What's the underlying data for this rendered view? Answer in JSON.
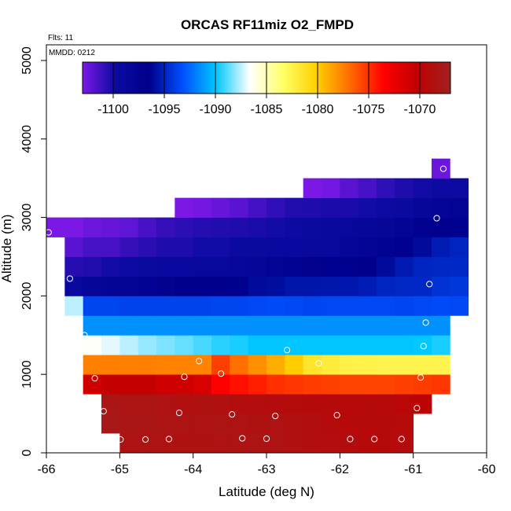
{
  "chart_data": {
    "type": "heatmap",
    "title": "ORCAS RF11miz O2_FMPD",
    "annotations": {
      "flights": "Flts: 11",
      "date": "MMDD: 0212"
    },
    "xlabel": "Latitude (deg N)",
    "ylabel": "Altitude (m)",
    "xlim": [
      -66,
      -60
    ],
    "ylim": [
      0,
      5200
    ],
    "xticks": [
      -66,
      -65,
      -64,
      -63,
      -62,
      -61,
      -60
    ],
    "yticks": [
      0,
      1000,
      2000,
      3000,
      4000,
      5000
    ],
    "colorbar": {
      "range": [
        -1103,
        -1067
      ],
      "ticks": [
        -1100,
        -1095,
        -1090,
        -1085,
        -1080,
        -1075,
        -1070
      ],
      "stops": [
        "#7b18e6",
        "#0a0aa0",
        "#00008c",
        "#0050ff",
        "#00c8ff",
        "#ffffff",
        "#ffff66",
        "#ffd000",
        "#ff6a00",
        "#ff0000",
        "#c00000",
        "#a02020"
      ]
    },
    "cell_width_deg": 0.25,
    "cell_height_m": 250,
    "rows": [
      {
        "y0": 0,
        "x0": -65.0,
        "values": [
          -1068.4,
          -1068.3,
          -1068.4,
          -1068.5,
          -1068.5,
          -1068.4,
          -1068.3,
          -1068.2,
          -1068.4,
          -1068.6,
          -1068.8,
          -1068.9,
          -1069.0,
          -1069.2,
          -1069.2,
          -1069.0
        ]
      },
      {
        "y0": 250,
        "x0": -65.25,
        "values": [
          -1067.8,
          -1068.0,
          -1068.0,
          -1068.2,
          -1068.3,
          -1068.4,
          -1068.2,
          -1068.4,
          -1068.5,
          -1068.4,
          -1068.6,
          -1068.8,
          -1069.0,
          -1069.2,
          -1069.3,
          -1069.2,
          -1069.1
        ]
      },
      {
        "y0": 500,
        "x0": -65.25,
        "values": [
          -1068.0,
          -1068.2,
          -1068.2,
          -1068.4,
          -1068.6,
          -1068.5,
          -1068.6,
          -1068.8,
          -1068.9,
          -1069.0,
          -1069.1,
          -1069.2,
          -1069.3,
          -1069.4,
          -1069.3,
          -1069.4,
          -1069.6,
          -1069.8
        ]
      },
      {
        "y0": 750,
        "x0": -65.5,
        "values": [
          -1071.0,
          -1070.5,
          -1070.5,
          -1070.5,
          -1071.0,
          -1071.0,
          -1071.5,
          -1073.5,
          -1074.0,
          -1074.5,
          -1075.0,
          -1075.2,
          -1075.4,
          -1075.5,
          -1075.6,
          -1075.6,
          -1075.6,
          -1075.5,
          -1075.4,
          -1075.2
        ]
      },
      {
        "y0": 1000,
        "x0": -65.5,
        "values": [
          -1077.5,
          -1077.5,
          -1077.5,
          -1077.5,
          -1077.6,
          -1077.6,
          -1077.6,
          -1075.5,
          -1077.0,
          -1078.0,
          -1079.0,
          -1080.0,
          -1081.5,
          -1082.0,
          -1082.4,
          -1082.5,
          -1082.6,
          -1082.6,
          -1082.6,
          -1082.6
        ]
      },
      {
        "y0": 1250,
        "x0": -65.5,
        "values": [
          -1086.5,
          -1087.0,
          -1087.5,
          -1088.0,
          -1088.3,
          -1088.6,
          -1089.0,
          -1089.4,
          -1089.6,
          -1090.0,
          -1090.0,
          -1090.0,
          -1090.0,
          -1090.0,
          -1090.0,
          -1090.0,
          -1090.0,
          -1090.0,
          -1089.9,
          -1089.6
        ]
      },
      {
        "y0": 1500,
        "x0": -65.5,
        "values": [
          -1091.4,
          -1091.4,
          -1091.4,
          -1091.4,
          -1091.4,
          -1091.4,
          -1091.4,
          -1091.4,
          -1091.4,
          -1091.4,
          -1091.4,
          -1091.4,
          -1091.4,
          -1091.4,
          -1091.4,
          -1091.4,
          -1091.4,
          -1091.4,
          -1091.4,
          -1091.4
        ]
      },
      {
        "y0": 1750,
        "x0": -65.75,
        "values": [
          -1087.5,
          -1093.6,
          -1093.6,
          -1093.7,
          -1093.7,
          -1093.7,
          -1093.7,
          -1093.7,
          -1093.6,
          -1093.6,
          -1093.5,
          -1093.4,
          -1093.5,
          -1093.6,
          -1093.5,
          -1093.5,
          -1093.5,
          -1093.5,
          -1093.6,
          -1093.5,
          -1093.4,
          -1093.5
        ]
      },
      {
        "y0": 2000,
        "x0": -65.75,
        "values": [
          -1099.0,
          -1098.5,
          -1098.0,
          -1097.8,
          -1097.6,
          -1097.0,
          -1096.5,
          -1096.6,
          -1096.6,
          -1096.4,
          -1096.0,
          -1095.9,
          -1095.6,
          -1095.6,
          -1095.5,
          -1095.5,
          -1095.3,
          -1095.0,
          -1094.9,
          -1094.8,
          -1094.4,
          -1094.2
        ]
      },
      {
        "y0": 2250,
        "x0": -65.75,
        "values": [
          -1100.5,
          -1100.4,
          -1100.0,
          -1099.8,
          -1099.6,
          -1099.5,
          -1099.5,
          -1099.2,
          -1099.2,
          -1098.9,
          -1098.5,
          -1097.8,
          -1097.4,
          -1097.0,
          -1096.9,
          -1096.4,
          -1096.5,
          -1096.0,
          -1095.4,
          -1095.0,
          -1094.9,
          -1094.8
        ]
      },
      {
        "y0": 2500,
        "x0": -65.75,
        "values": [
          -1102.0,
          -1101.5,
          -1101.5,
          -1101.0,
          -1100.6,
          -1100.3,
          -1100.3,
          -1100.0,
          -1100.0,
          -1099.7,
          -1099.6,
          -1099.5,
          -1099.5,
          -1099.4,
          -1099.0,
          -1098.5,
          -1098.0,
          -1097.5,
          -1096.4,
          -1096.0,
          -1095.3,
          -1095.0
        ]
      },
      {
        "y0": 2750,
        "x0": -66.0,
        "values": [
          -1103.0,
          -1103.0,
          -1102.6,
          -1102.4,
          -1102.2,
          -1101.5,
          -1101.0,
          -1100.7,
          -1100.5,
          -1100.4,
          -1100.3,
          -1100.2,
          -1100.0,
          -1099.8,
          -1099.6,
          -1099.5,
          -1099.0,
          -1098.6,
          -1098.3,
          -1097.9,
          -1097.2,
          -1096.7,
          -1096.4
        ]
      },
      {
        "y0": 3000,
        "x0": -64.25,
        "values": [
          -1103.2,
          -1102.8,
          -1102.4,
          -1102.0,
          -1101.4,
          -1100.8,
          -1100.4,
          -1100.3,
          -1100.2,
          -1100.2,
          -1100.0,
          -1099.8,
          -1099.6,
          -1098.8,
          -1098.2,
          -1097.8
        ]
      },
      {
        "y0": 3250,
        "x0": -62.5,
        "values": [
          -1103.0,
          -1102.8,
          -1102.0,
          -1101.5,
          -1100.8,
          -1100.3,
          -1100.0,
          -1099.8,
          -1099.8
        ]
      },
      {
        "y0": 3500,
        "x0": -60.75,
        "values": [
          -1102.5
        ]
      }
    ],
    "flight_points": [
      {
        "lat": -65.97,
        "alt": 2810
      },
      {
        "lat": -65.68,
        "alt": 2220
      },
      {
        "lat": -65.48,
        "alt": 1500
      },
      {
        "lat": -65.34,
        "alt": 950
      },
      {
        "lat": -65.22,
        "alt": 530
      },
      {
        "lat": -64.99,
        "alt": 170
      },
      {
        "lat": -64.65,
        "alt": 170
      },
      {
        "lat": -64.33,
        "alt": 175
      },
      {
        "lat": -64.19,
        "alt": 510
      },
      {
        "lat": -64.12,
        "alt": 970
      },
      {
        "lat": -63.92,
        "alt": 1170
      },
      {
        "lat": -63.62,
        "alt": 1010
      },
      {
        "lat": -63.47,
        "alt": 490
      },
      {
        "lat": -63.33,
        "alt": 185
      },
      {
        "lat": -63.0,
        "alt": 180
      },
      {
        "lat": -62.88,
        "alt": 470
      },
      {
        "lat": -62.72,
        "alt": 1310
      },
      {
        "lat": -62.29,
        "alt": 1140
      },
      {
        "lat": -62.04,
        "alt": 480
      },
      {
        "lat": -61.86,
        "alt": 175
      },
      {
        "lat": -61.53,
        "alt": 175
      },
      {
        "lat": -61.16,
        "alt": 175
      },
      {
        "lat": -60.95,
        "alt": 570
      },
      {
        "lat": -60.9,
        "alt": 960
      },
      {
        "lat": -60.86,
        "alt": 1360
      },
      {
        "lat": -60.83,
        "alt": 1660
      },
      {
        "lat": -60.78,
        "alt": 2150
      },
      {
        "lat": -60.68,
        "alt": 2990
      },
      {
        "lat": -60.59,
        "alt": 3620
      }
    ]
  }
}
